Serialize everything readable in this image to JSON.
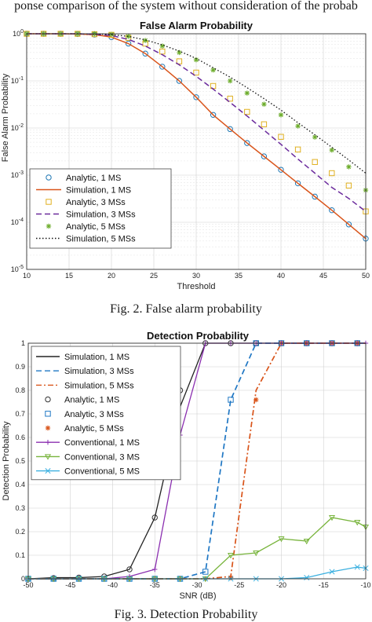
{
  "top_strip_text": "ponse comparison of the system without consideration of the probab",
  "chart_data": [
    {
      "type": "line",
      "title": "False Alarm Probability",
      "xlabel": "Threshold",
      "ylabel": "False Alarm Probability",
      "yscale": "log",
      "xlim": [
        10,
        50
      ],
      "ylim": [
        1e-05,
        1
      ],
      "grid": true,
      "legend_position": "bottom-left",
      "x_ticks": [
        "10",
        "15",
        "20",
        "25",
        "30",
        "35",
        "40",
        "45",
        "50"
      ],
      "y_ticks": [
        {
          "base": "10",
          "exp": "0",
          "value": 1
        },
        {
          "base": "10",
          "exp": "-1",
          "value": 0.1
        },
        {
          "base": "10",
          "exp": "-2",
          "value": 0.01
        },
        {
          "base": "10",
          "exp": "-3",
          "value": 0.001
        },
        {
          "base": "10",
          "exp": "-4",
          "value": 0.0001
        },
        {
          "base": "10",
          "exp": "-5",
          "value": 1e-05
        }
      ],
      "series": [
        {
          "name": "Analytic, 1 MS",
          "style": "marker",
          "marker": "circle",
          "color": "#1f77b4",
          "x": [
            10,
            12,
            14,
            16,
            18,
            20,
            22,
            24,
            26,
            28,
            30,
            32,
            34,
            36,
            38,
            40,
            42,
            44,
            46,
            48,
            50
          ],
          "y": [
            1,
            1,
            1,
            0.99,
            0.96,
            0.85,
            0.62,
            0.38,
            0.2,
            0.1,
            0.045,
            0.019,
            0.0095,
            0.0048,
            0.0025,
            0.0013,
            0.00067,
            0.00035,
            0.00018,
            9e-05,
            4.5e-05
          ]
        },
        {
          "name": "Simulation, 1 MS",
          "style": "line",
          "dash": "",
          "color": "#d9541a",
          "x": [
            10,
            12,
            14,
            16,
            18,
            20,
            22,
            24,
            26,
            28,
            30,
            32,
            34,
            36,
            38,
            40,
            42,
            44,
            46,
            48,
            50
          ],
          "y": [
            1,
            1,
            1,
            0.99,
            0.96,
            0.85,
            0.62,
            0.38,
            0.2,
            0.1,
            0.045,
            0.019,
            0.0095,
            0.0048,
            0.0025,
            0.0013,
            0.00067,
            0.00035,
            0.00018,
            9e-05,
            4.5e-05
          ]
        },
        {
          "name": "Analytic, 3 MSs",
          "style": "marker",
          "marker": "square",
          "color": "#e0b020",
          "x": [
            10,
            12,
            14,
            16,
            18,
            20,
            22,
            24,
            26,
            28,
            30,
            32,
            34,
            36,
            38,
            40,
            42,
            44,
            46,
            48,
            50
          ],
          "y": [
            1,
            1,
            1,
            1,
            0.98,
            0.95,
            0.82,
            0.62,
            0.42,
            0.26,
            0.15,
            0.078,
            0.042,
            0.022,
            0.012,
            0.0065,
            0.0035,
            0.0019,
            0.0011,
            0.0006,
            0.00017
          ]
        },
        {
          "name": "Simulation, 3 MSs",
          "style": "line",
          "dash": "7,4",
          "color": "#6a2a9c",
          "x": [
            10,
            12,
            14,
            16,
            18,
            20,
            22,
            24,
            26,
            28,
            30,
            32,
            34,
            36,
            38,
            40,
            42,
            44,
            46,
            48,
            50
          ],
          "y": [
            1,
            1,
            1,
            1,
            0.98,
            0.92,
            0.76,
            0.55,
            0.36,
            0.22,
            0.125,
            0.067,
            0.035,
            0.018,
            0.009,
            0.0045,
            0.0022,
            0.0011,
            0.00055,
            0.00032,
            0.00017
          ]
        },
        {
          "name": "Analytic, 5 MSs",
          "style": "marker",
          "marker": "asterisk",
          "color": "#6fae2f",
          "x": [
            10,
            12,
            14,
            16,
            18,
            20,
            22,
            24,
            26,
            28,
            30,
            32,
            34,
            36,
            38,
            40,
            42,
            44,
            46,
            48,
            50
          ],
          "y": [
            1,
            1,
            1,
            1,
            1,
            0.97,
            0.88,
            0.72,
            0.55,
            0.4,
            0.28,
            0.17,
            0.1,
            0.055,
            0.032,
            0.019,
            0.011,
            0.0064,
            0.0034,
            0.0015,
            0.00048
          ]
        },
        {
          "name": "Simulation, 5 MSs",
          "style": "line",
          "dash": "1.5,2.5",
          "color": "#111111",
          "x": [
            10,
            12,
            14,
            16,
            18,
            20,
            22,
            24,
            26,
            28,
            30,
            32,
            34,
            36,
            38,
            40,
            42,
            44,
            46,
            48,
            50
          ],
          "y": [
            1,
            1,
            1,
            1,
            0.99,
            0.96,
            0.88,
            0.74,
            0.58,
            0.43,
            0.3,
            0.19,
            0.12,
            0.072,
            0.042,
            0.024,
            0.013,
            0.0072,
            0.0039,
            0.0021,
            0.0011
          ]
        }
      ]
    },
    {
      "type": "line",
      "title": "Detection Probability",
      "xlabel": "SNR (dB)",
      "ylabel": "Detection Probability",
      "yscale": "linear",
      "xlim": [
        -50,
        -10
      ],
      "ylim": [
        0,
        1
      ],
      "grid": true,
      "legend_position": "top-left",
      "x_ticks": [
        "-50",
        "-45",
        "-40",
        "-35",
        "-30",
        "-25",
        "-20",
        "-15",
        "-10"
      ],
      "y_ticks": [
        "0",
        "0.1",
        "0.2",
        "0.3",
        "0.4",
        "0.5",
        "0.6",
        "0.7",
        "0.8",
        "0.9",
        "1"
      ],
      "series": [
        {
          "name": "Simulation, 1 MS",
          "style": "line",
          "dash": "",
          "marker": "none",
          "color": "#222222",
          "x": [
            -50,
            -47,
            -44,
            -41,
            -38,
            -35,
            -32,
            -29,
            -26,
            -23,
            -20,
            -17,
            -14,
            -11,
            -10
          ],
          "y": [
            0,
            0.005,
            0.005,
            0.01,
            0.04,
            0.26,
            0.73,
            1,
            1,
            1,
            1,
            1,
            1,
            1,
            1
          ]
        },
        {
          "name": "Simulation, 3 MSs",
          "style": "line",
          "dash": "7,4",
          "marker": "none",
          "color": "#1f77c4",
          "x": [
            -50,
            -47,
            -44,
            -41,
            -38,
            -35,
            -32,
            -29,
            -26,
            -23,
            -20,
            -17,
            -14,
            -11,
            -10
          ],
          "y": [
            0,
            0,
            0,
            0,
            0,
            0,
            0,
            0.03,
            0.76,
            1,
            1,
            1,
            1,
            1,
            1
          ]
        },
        {
          "name": "Simulation, 5 MSs",
          "style": "line",
          "dash": "7,3,2,3",
          "marker": "none",
          "color": "#d9541a",
          "x": [
            -50,
            -47,
            -44,
            -41,
            -38,
            -35,
            -32,
            -29,
            -26,
            -23,
            -20,
            -17,
            -14,
            -11,
            -10
          ],
          "y": [
            0,
            0,
            0,
            0,
            0,
            0,
            0,
            0,
            0.01,
            0.8,
            1,
            1,
            1,
            1,
            1
          ]
        },
        {
          "name": "Analytic, 1 MS",
          "style": "marker",
          "marker": "circle",
          "color": "#333333",
          "x": [
            -50,
            -47,
            -44,
            -41,
            -38,
            -35,
            -32,
            -29,
            -26,
            -23,
            -20,
            -17,
            -14,
            -11
          ],
          "y": [
            0,
            0.003,
            0.005,
            0.01,
            0.04,
            0.26,
            0.8,
            1,
            1,
            1,
            1,
            1,
            1,
            1
          ]
        },
        {
          "name": "Analytic, 3 MSs",
          "style": "marker",
          "marker": "square",
          "color": "#1f77c4",
          "x": [
            -50,
            -47,
            -44,
            -41,
            -38,
            -35,
            -32,
            -29,
            -26,
            -23,
            -20,
            -17,
            -14,
            -11
          ],
          "y": [
            0,
            0,
            0,
            0,
            0,
            0,
            0,
            0.03,
            0.76,
            1,
            1,
            1,
            1,
            1
          ]
        },
        {
          "name": "Analytic, 5 MSs",
          "style": "marker",
          "marker": "asterisk",
          "color": "#d9541a",
          "x": [
            -50,
            -47,
            -44,
            -41,
            -38,
            -35,
            -32,
            -29,
            -26,
            -23,
            -20,
            -17,
            -14,
            -11
          ],
          "y": [
            0,
            0,
            0,
            0,
            0,
            0,
            0,
            0,
            0.005,
            0.76,
            1,
            1,
            1,
            1
          ]
        },
        {
          "name": "Conventional, 1 MS",
          "style": "line",
          "dash": "",
          "marker": "plus",
          "color": "#8b2fb0",
          "x": [
            -50,
            -47,
            -44,
            -41,
            -38,
            -35,
            -32,
            -29,
            -26,
            -23,
            -20,
            -17,
            -14,
            -11,
            -10
          ],
          "y": [
            0,
            0,
            0,
            0,
            0.01,
            0.04,
            0.61,
            1,
            1,
            1,
            1,
            1,
            1,
            1,
            1
          ]
        },
        {
          "name": "Conventional, 3 MS",
          "style": "line",
          "dash": "",
          "marker": "triangle",
          "color": "#78b43c",
          "x": [
            -50,
            -47,
            -44,
            -41,
            -38,
            -35,
            -32,
            -29,
            -26,
            -23,
            -20,
            -17,
            -14,
            -11,
            -10
          ],
          "y": [
            0,
            0,
            0,
            0,
            0,
            0,
            0,
            0,
            0.1,
            0.11,
            0.17,
            0.16,
            0.26,
            0.24,
            0.22
          ]
        },
        {
          "name": "Conventional, 5 MS",
          "style": "line",
          "dash": "",
          "marker": "x",
          "color": "#3bb0e0",
          "x": [
            -50,
            -47,
            -44,
            -41,
            -38,
            -35,
            -32,
            -29,
            -26,
            -23,
            -20,
            -17,
            -14,
            -11,
            -10
          ],
          "y": [
            0,
            0,
            0,
            0,
            0,
            0,
            0,
            0,
            0,
            0,
            0,
            0.005,
            0.03,
            0.05,
            0.045
          ]
        }
      ]
    }
  ],
  "captions": [
    "Fig. 2.   False alarm probability",
    "Fig. 3.   Detection Probability"
  ]
}
